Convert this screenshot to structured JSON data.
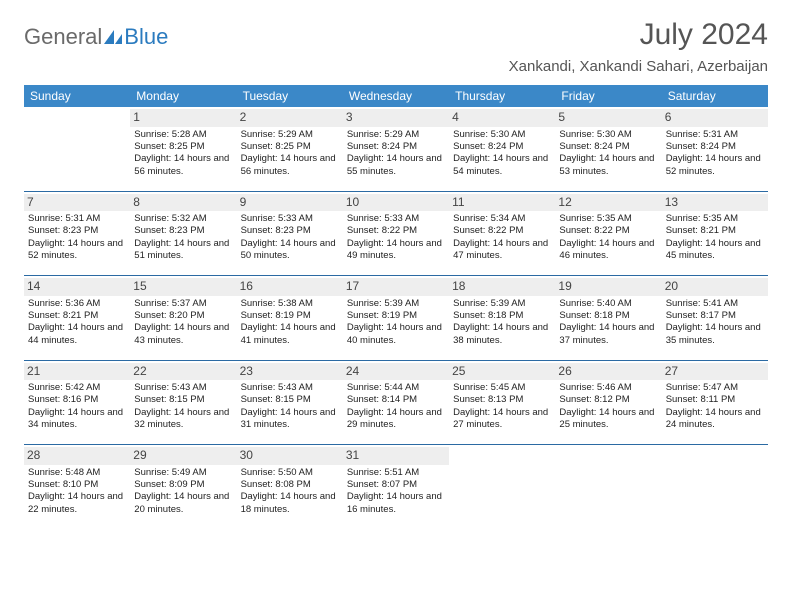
{
  "logo": {
    "text1": "General",
    "text2": "Blue"
  },
  "title": "July 2024",
  "location": "Xankandi, Xankandi Sahari, Azerbaijan",
  "colors": {
    "header_bg": "#3b88c8",
    "header_text": "#ffffff",
    "daynum_bg": "#eeeeee",
    "sep": "#2b6aa3",
    "logo_gray": "#6a6a6a",
    "logo_blue": "#2b7bbf"
  },
  "day_headers": [
    "Sunday",
    "Monday",
    "Tuesday",
    "Wednesday",
    "Thursday",
    "Friday",
    "Saturday"
  ],
  "weeks": [
    [
      null,
      {
        "n": "1",
        "sr": "5:28 AM",
        "ss": "8:25 PM",
        "dl": "14 hours and 56 minutes."
      },
      {
        "n": "2",
        "sr": "5:29 AM",
        "ss": "8:25 PM",
        "dl": "14 hours and 56 minutes."
      },
      {
        "n": "3",
        "sr": "5:29 AM",
        "ss": "8:24 PM",
        "dl": "14 hours and 55 minutes."
      },
      {
        "n": "4",
        "sr": "5:30 AM",
        "ss": "8:24 PM",
        "dl": "14 hours and 54 minutes."
      },
      {
        "n": "5",
        "sr": "5:30 AM",
        "ss": "8:24 PM",
        "dl": "14 hours and 53 minutes."
      },
      {
        "n": "6",
        "sr": "5:31 AM",
        "ss": "8:24 PM",
        "dl": "14 hours and 52 minutes."
      }
    ],
    [
      {
        "n": "7",
        "sr": "5:31 AM",
        "ss": "8:23 PM",
        "dl": "14 hours and 52 minutes."
      },
      {
        "n": "8",
        "sr": "5:32 AM",
        "ss": "8:23 PM",
        "dl": "14 hours and 51 minutes."
      },
      {
        "n": "9",
        "sr": "5:33 AM",
        "ss": "8:23 PM",
        "dl": "14 hours and 50 minutes."
      },
      {
        "n": "10",
        "sr": "5:33 AM",
        "ss": "8:22 PM",
        "dl": "14 hours and 49 minutes."
      },
      {
        "n": "11",
        "sr": "5:34 AM",
        "ss": "8:22 PM",
        "dl": "14 hours and 47 minutes."
      },
      {
        "n": "12",
        "sr": "5:35 AM",
        "ss": "8:22 PM",
        "dl": "14 hours and 46 minutes."
      },
      {
        "n": "13",
        "sr": "5:35 AM",
        "ss": "8:21 PM",
        "dl": "14 hours and 45 minutes."
      }
    ],
    [
      {
        "n": "14",
        "sr": "5:36 AM",
        "ss": "8:21 PM",
        "dl": "14 hours and 44 minutes."
      },
      {
        "n": "15",
        "sr": "5:37 AM",
        "ss": "8:20 PM",
        "dl": "14 hours and 43 minutes."
      },
      {
        "n": "16",
        "sr": "5:38 AM",
        "ss": "8:19 PM",
        "dl": "14 hours and 41 minutes."
      },
      {
        "n": "17",
        "sr": "5:39 AM",
        "ss": "8:19 PM",
        "dl": "14 hours and 40 minutes."
      },
      {
        "n": "18",
        "sr": "5:39 AM",
        "ss": "8:18 PM",
        "dl": "14 hours and 38 minutes."
      },
      {
        "n": "19",
        "sr": "5:40 AM",
        "ss": "8:18 PM",
        "dl": "14 hours and 37 minutes."
      },
      {
        "n": "20",
        "sr": "5:41 AM",
        "ss": "8:17 PM",
        "dl": "14 hours and 35 minutes."
      }
    ],
    [
      {
        "n": "21",
        "sr": "5:42 AM",
        "ss": "8:16 PM",
        "dl": "14 hours and 34 minutes."
      },
      {
        "n": "22",
        "sr": "5:43 AM",
        "ss": "8:15 PM",
        "dl": "14 hours and 32 minutes."
      },
      {
        "n": "23",
        "sr": "5:43 AM",
        "ss": "8:15 PM",
        "dl": "14 hours and 31 minutes."
      },
      {
        "n": "24",
        "sr": "5:44 AM",
        "ss": "8:14 PM",
        "dl": "14 hours and 29 minutes."
      },
      {
        "n": "25",
        "sr": "5:45 AM",
        "ss": "8:13 PM",
        "dl": "14 hours and 27 minutes."
      },
      {
        "n": "26",
        "sr": "5:46 AM",
        "ss": "8:12 PM",
        "dl": "14 hours and 25 minutes."
      },
      {
        "n": "27",
        "sr": "5:47 AM",
        "ss": "8:11 PM",
        "dl": "14 hours and 24 minutes."
      }
    ],
    [
      {
        "n": "28",
        "sr": "5:48 AM",
        "ss": "8:10 PM",
        "dl": "14 hours and 22 minutes."
      },
      {
        "n": "29",
        "sr": "5:49 AM",
        "ss": "8:09 PM",
        "dl": "14 hours and 20 minutes."
      },
      {
        "n": "30",
        "sr": "5:50 AM",
        "ss": "8:08 PM",
        "dl": "14 hours and 18 minutes."
      },
      {
        "n": "31",
        "sr": "5:51 AM",
        "ss": "8:07 PM",
        "dl": "14 hours and 16 minutes."
      },
      null,
      null,
      null
    ]
  ],
  "labels": {
    "sunrise": "Sunrise: ",
    "sunset": "Sunset: ",
    "daylight": "Daylight: "
  }
}
